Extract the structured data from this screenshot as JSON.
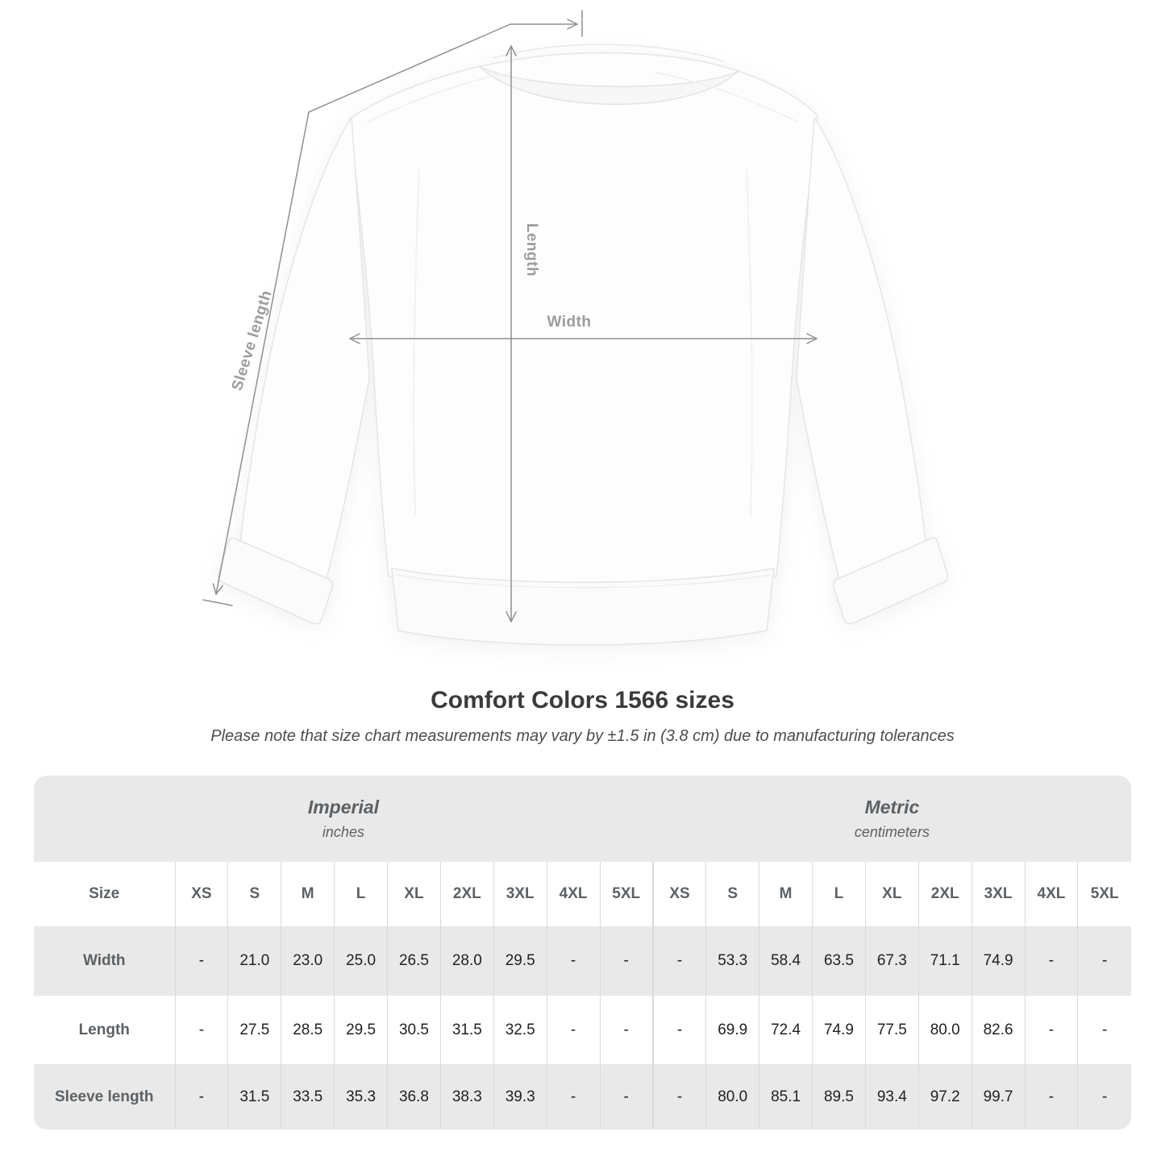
{
  "title": "Comfort Colors 1566 sizes",
  "subtitle": "Please note that size chart measurements may vary by ±1.5 in (3.8 cm) due to manufacturing tolerances",
  "diagram": {
    "length_label": "Length",
    "width_label": "Width",
    "sleeve_label": "Sleeve length"
  },
  "colors": {
    "measure_line_gray": "#8f8f8f",
    "measure_label_gray": "#9c9c9c",
    "table_stripe": "#e9e9e9",
    "table_header_text": "#5c6165",
    "value_text": "#222222",
    "title_text": "#3b3b3b"
  },
  "chart_data": {
    "type": "table",
    "title": "Comfort Colors 1566 sizes",
    "note": "Please note that size chart measurements may vary by ±1.5 in (3.8 cm) due to manufacturing tolerances",
    "size_header": "Size",
    "sizes": [
      "XS",
      "S",
      "M",
      "L",
      "XL",
      "2XL",
      "3XL",
      "4XL",
      "5XL"
    ],
    "unit_headers": [
      {
        "label": "Imperial",
        "unit": "inches"
      },
      {
        "label": "Metric",
        "unit": "centimeters"
      }
    ],
    "rows": [
      {
        "label": "Width",
        "imperial": [
          "-",
          "21.0",
          "23.0",
          "25.0",
          "26.5",
          "28.0",
          "29.5",
          "-",
          "-"
        ],
        "metric": [
          "-",
          "53.3",
          "58.4",
          "63.5",
          "67.3",
          "71.1",
          "74.9",
          "-",
          "-"
        ]
      },
      {
        "label": "Length",
        "imperial": [
          "-",
          "27.5",
          "28.5",
          "29.5",
          "30.5",
          "31.5",
          "32.5",
          "-",
          "-"
        ],
        "metric": [
          "-",
          "69.9",
          "72.4",
          "74.9",
          "77.5",
          "80.0",
          "82.6",
          "-",
          "-"
        ]
      },
      {
        "label": "Sleeve length",
        "imperial": [
          "-",
          "31.5",
          "33.5",
          "35.3",
          "36.8",
          "38.3",
          "39.3",
          "-",
          "-"
        ],
        "metric": [
          "-",
          "80.0",
          "85.1",
          "89.5",
          "93.4",
          "97.2",
          "99.7",
          "-",
          "-"
        ]
      }
    ]
  }
}
